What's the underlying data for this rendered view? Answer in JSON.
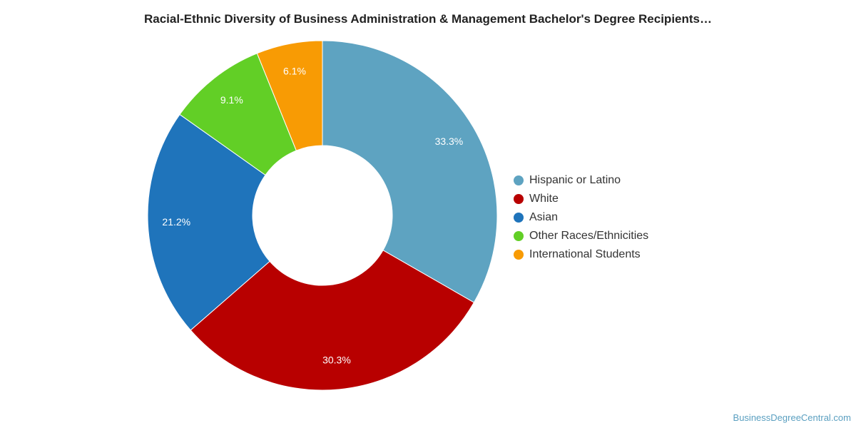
{
  "chart_data": {
    "type": "pie",
    "title": "Racial-Ethnic Diversity of Business Administration & Management Bachelor's Degree Recipients…",
    "legend_position": "right",
    "donut": true,
    "slices": [
      {
        "label": "Hispanic or Latino",
        "value": 33.3,
        "value_label": "33.3%",
        "color": "#5ea3c1"
      },
      {
        "label": "White",
        "value": 30.3,
        "value_label": "30.3%",
        "color": "#b80000"
      },
      {
        "label": "Asian",
        "value": 21.2,
        "value_label": "21.2%",
        "color": "#1f74bb"
      },
      {
        "label": "Other Races/Ethnicities",
        "value": 9.1,
        "value_label": "9.1%",
        "color": "#62cf26"
      },
      {
        "label": "International Students",
        "value": 6.1,
        "value_label": "6.1%",
        "color": "#f89b04"
      }
    ]
  },
  "footer": {
    "watermark": "BusinessDegreeCentral.com"
  }
}
